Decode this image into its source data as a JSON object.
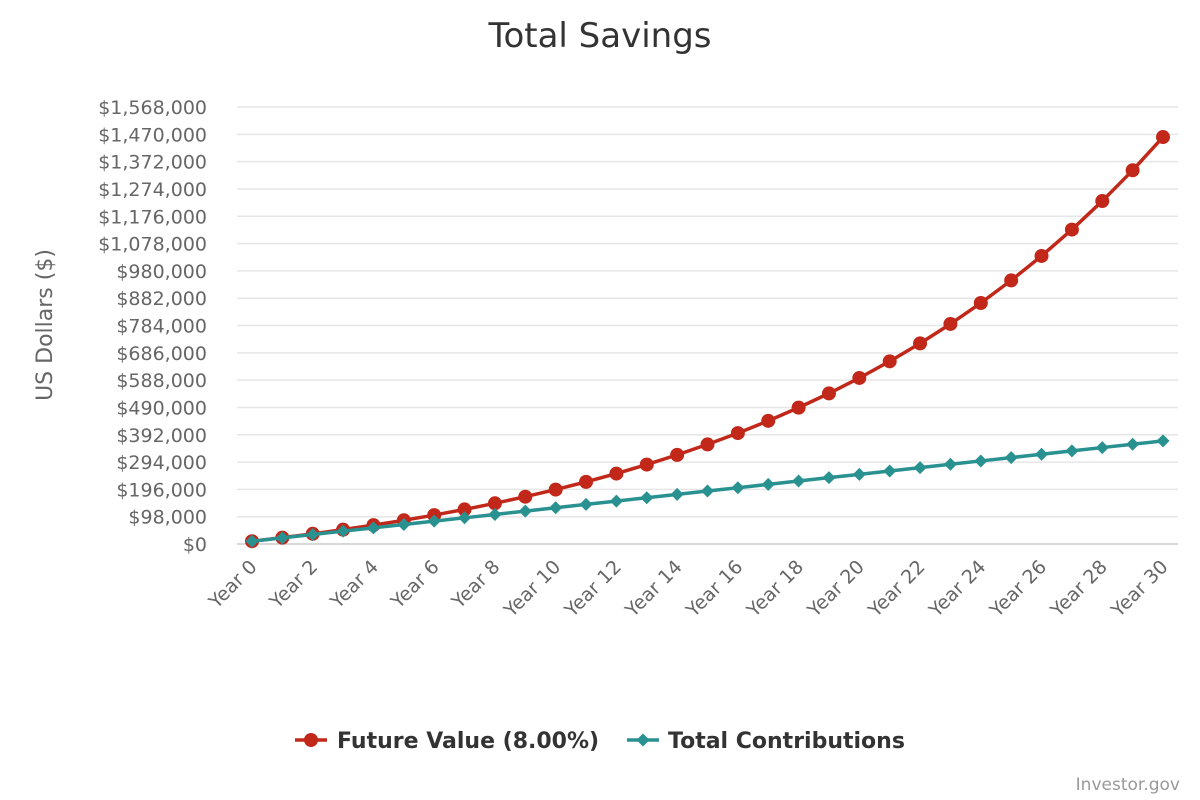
{
  "chart_data": {
    "type": "line",
    "title": "Total Savings",
    "xlabel": "",
    "ylabel": "US Dollars ($)",
    "categories": [
      "Year 0",
      "Year 1",
      "Year 2",
      "Year 3",
      "Year 4",
      "Year 5",
      "Year 6",
      "Year 7",
      "Year 8",
      "Year 9",
      "Year 10",
      "Year 11",
      "Year 12",
      "Year 13",
      "Year 14",
      "Year 15",
      "Year 16",
      "Year 17",
      "Year 18",
      "Year 19",
      "Year 20",
      "Year 21",
      "Year 22",
      "Year 23",
      "Year 24",
      "Year 25",
      "Year 26",
      "Year 27",
      "Year 28",
      "Year 29",
      "Year 30"
    ],
    "x_tick_labels": [
      "Year 0",
      "Year 2",
      "Year 4",
      "Year 6",
      "Year 8",
      "Year 10",
      "Year 12",
      "Year 14",
      "Year 16",
      "Year 18",
      "Year 20",
      "Year 22",
      "Year 24",
      "Year 26",
      "Year 28",
      "Year 30"
    ],
    "y_ticks": [
      0,
      98000,
      196000,
      294000,
      392000,
      490000,
      588000,
      686000,
      784000,
      882000,
      980000,
      1078000,
      1176000,
      1274000,
      1372000,
      1470000,
      1568000
    ],
    "y_tick_labels": [
      "$0",
      "$98,000",
      "$196,000",
      "$294,000",
      "$392,000",
      "$490,000",
      "$588,000",
      "$686,000",
      "$784,000",
      "$882,000",
      "$980,000",
      "$1,078,000",
      "$1,176,000",
      "$1,274,000",
      "$1,372,000",
      "$1,470,000",
      "$1,568,000"
    ],
    "ylim": [
      0,
      1568000
    ],
    "grid": true,
    "legend_position": "bottom-center",
    "series": [
      {
        "name": "Future Value (8.00%)",
        "color": "#c1281a",
        "marker": "circle",
        "values": [
          10000,
          22800,
          36600,
          51500,
          67600,
          85000,
          103800,
          124100,
          146000,
          169700,
          195300,
          222900,
          252700,
          285000,
          319800,
          357400,
          398000,
          441900,
          489300,
          540400,
          595700,
          655400,
          719800,
          789500,
          864700,
          945800,
          1033500,
          1128200,
          1230500,
          1340900,
          1460200
        ]
      },
      {
        "name": "Total Contributions",
        "color": "#2a9191",
        "marker": "diamond",
        "values": [
          10000,
          22000,
          34000,
          46000,
          58000,
          70000,
          82000,
          94000,
          106000,
          118000,
          130000,
          142000,
          154000,
          166000,
          178000,
          190000,
          202000,
          214000,
          226000,
          238000,
          250000,
          262000,
          274000,
          286000,
          298000,
          310000,
          322000,
          334000,
          346000,
          358000,
          370000
        ]
      }
    ]
  },
  "credit": "Investor.gov"
}
